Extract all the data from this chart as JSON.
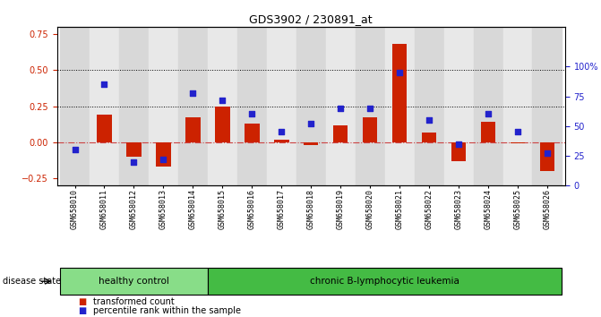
{
  "title": "GDS3902 / 230891_at",
  "samples": [
    "GSM658010",
    "GSM658011",
    "GSM658012",
    "GSM658013",
    "GSM658014",
    "GSM658015",
    "GSM658016",
    "GSM658017",
    "GSM658018",
    "GSM658019",
    "GSM658020",
    "GSM658021",
    "GSM658022",
    "GSM658023",
    "GSM658024",
    "GSM658025",
    "GSM658026"
  ],
  "bar_values": [
    0.0,
    0.19,
    -0.1,
    -0.17,
    0.17,
    0.25,
    0.13,
    0.02,
    -0.02,
    0.12,
    0.17,
    0.68,
    0.07,
    -0.13,
    0.14,
    -0.01,
    -0.2
  ],
  "dot_values": [
    30,
    85,
    20,
    22,
    78,
    72,
    60,
    45,
    52,
    65,
    65,
    95,
    55,
    35,
    60,
    45,
    27
  ],
  "bar_color": "#cc2200",
  "dot_color": "#2222cc",
  "ylim_left": [
    -0.3,
    0.8
  ],
  "ylim_right": [
    0,
    133.33
  ],
  "yticks_left": [
    -0.25,
    0.0,
    0.25,
    0.5,
    0.75
  ],
  "yticks_right": [
    0,
    25,
    50,
    75,
    100
  ],
  "ytick_labels_right": [
    "0",
    "25",
    "50",
    "75",
    "100%"
  ],
  "hlines": [
    0.25,
    0.5
  ],
  "healthy_count": 5,
  "disease_label_healthy": "healthy control",
  "disease_label_chronic": "chronic B-lymphocytic leukemia",
  "disease_state_label": "disease state",
  "legend_bar": "transformed count",
  "legend_dot": "percentile rank within the sample",
  "group_color_healthy": "#88dd88",
  "group_color_chronic": "#44bb44",
  "bar_width": 0.5
}
